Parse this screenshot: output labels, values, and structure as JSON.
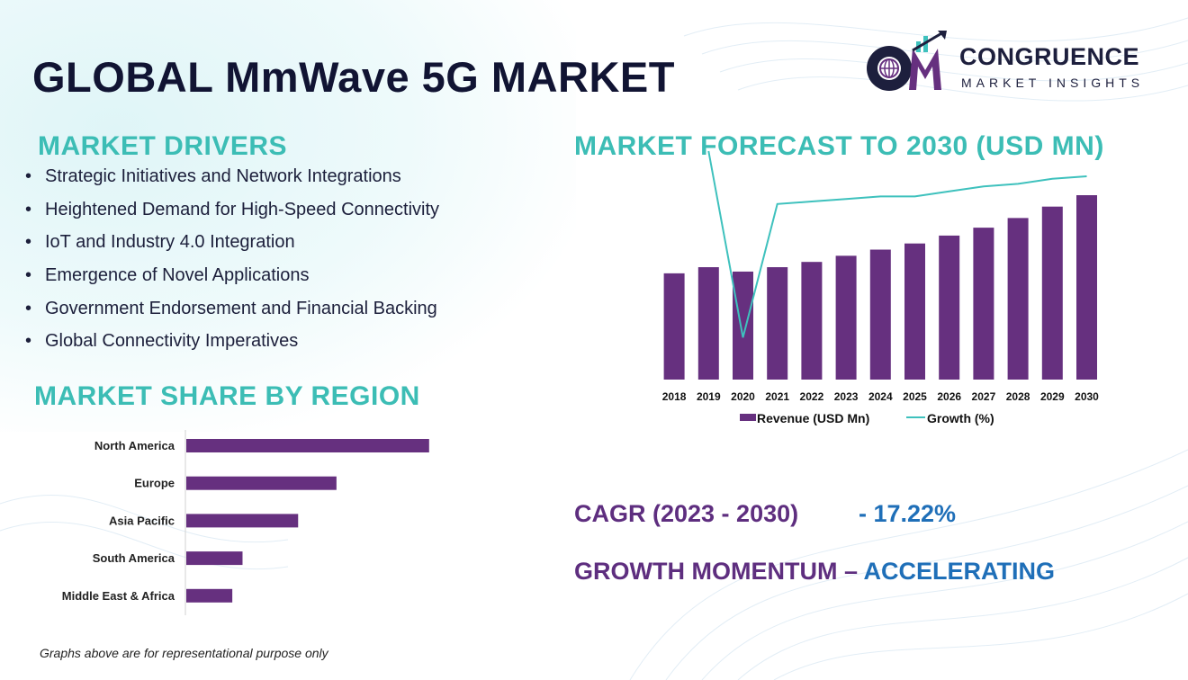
{
  "title": "GLOBAL MmWave 5G MARKET",
  "logo": {
    "initials": "CM",
    "line1": "CONGRUENCE",
    "line2": "MARKET INSIGHTS",
    "icon": "globe-growth-arrow-icon"
  },
  "drivers": {
    "title": "MARKET DRIVERS",
    "items": [
      "Strategic Initiatives and Network Integrations",
      "Heightened Demand for High-Speed Connectivity",
      "IoT and Industry 4.0 Integration",
      "Emergence of Novel Applications",
      "Government Endorsement and Financial Backing",
      "Global Connectivity Imperatives"
    ]
  },
  "forecast_title": "MARKET FORECAST TO 2030 (USD MN)",
  "region_title": "MARKET SHARE BY REGION",
  "cagr": {
    "label": "CAGR (2023 - 2030)",
    "value": "- 17.22%"
  },
  "momentum": {
    "label": "GROWTH MOMENTUM –",
    "value": " ACCELERATING"
  },
  "footnote": "Graphs above are for representational purpose only",
  "colors": {
    "bar": "#66307f",
    "growth_line": "#3ec1bd",
    "section_title": "#3cbdb5",
    "title": "#111433",
    "accent_blue": "#1f6fb8",
    "accent_purple": "#5e2e7f"
  },
  "chart_data": [
    {
      "type": "bar",
      "categories": [
        "2018",
        "2019",
        "2020",
        "2021",
        "2022",
        "2023",
        "2024",
        "2025",
        "2026",
        "2027",
        "2028",
        "2029",
        "2030"
      ],
      "series": [
        {
          "name": "Revenue (USD Mn)",
          "type": "bar",
          "values": [
            121,
            128,
            123,
            128,
            134,
            141,
            148,
            155,
            164,
            173,
            184,
            197,
            210
          ]
        },
        {
          "name": "Growth (%)",
          "type": "line",
          "values": [
            null,
            90,
            16,
            69,
            70,
            71,
            72,
            72,
            74,
            76,
            77,
            79,
            80
          ]
        }
      ],
      "ylim": [
        0,
        210
      ],
      "growth_ylim": [
        0,
        100
      ],
      "legend": "bottom",
      "grid": false
    },
    {
      "type": "bar",
      "orientation": "horizontal",
      "categories": [
        "North America",
        "Europe",
        "Asia Pacific",
        "South America",
        "Middle East & Africa"
      ],
      "values": [
        38,
        23.5,
        17.5,
        8.8,
        7.2
      ],
      "xlim": [
        0,
        40
      ],
      "grid": false
    }
  ]
}
